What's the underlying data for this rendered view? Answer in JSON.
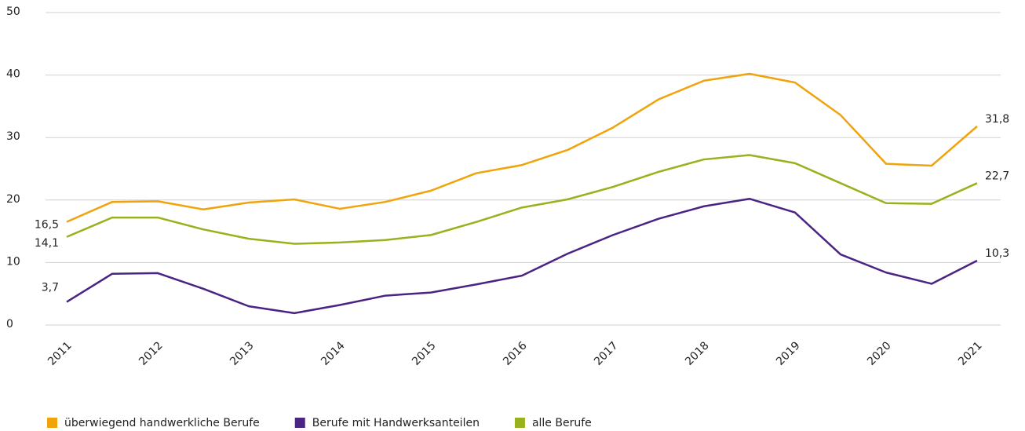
{
  "chart_data": {
    "type": "line",
    "categories": [
      "2011",
      null,
      "2012",
      null,
      "2013",
      null,
      "2014",
      null,
      "2015",
      null,
      "2016",
      null,
      "2017",
      null,
      "2018",
      null,
      "2019",
      null,
      "2020",
      null,
      "2021"
    ],
    "ylim": [
      0,
      50
    ],
    "yticks": [
      0,
      10,
      20,
      30,
      40,
      50
    ],
    "grid": true,
    "legend": "bottom",
    "series": [
      {
        "name": "überwiegend handwerkliche Berufe",
        "color": "#f0a30a",
        "values": [
          16.5,
          19.7,
          19.8,
          18.5,
          19.6,
          20.1,
          18.6,
          19.7,
          21.5,
          24.3,
          25.6,
          28.0,
          31.6,
          36.1,
          39.1,
          40.2,
          38.8,
          33.6,
          25.8,
          25.5,
          31.8
        ],
        "value_labels": [
          "16,5",
          null,
          null,
          null,
          null,
          null,
          null,
          null,
          null,
          null,
          null,
          null,
          null,
          null,
          null,
          null,
          null,
          null,
          null,
          null,
          "31,8"
        ]
      },
      {
        "name": "Berufe mit Handwerksanteilen",
        "color": "#4a2483",
        "values": [
          3.7,
          8.2,
          8.3,
          5.8,
          3.0,
          1.9,
          3.2,
          4.7,
          5.2,
          6.5,
          7.9,
          11.4,
          14.4,
          17.0,
          19.0,
          20.2,
          18.0,
          11.3,
          8.4,
          6.6,
          10.3
        ],
        "value_labels": [
          "3,7",
          null,
          null,
          null,
          null,
          null,
          null,
          null,
          null,
          null,
          null,
          null,
          null,
          null,
          null,
          null,
          null,
          null,
          null,
          null,
          "10,3"
        ]
      },
      {
        "name": "alle Berufe",
        "color": "#97b21c",
        "values": [
          14.1,
          17.2,
          17.2,
          15.3,
          13.8,
          13.0,
          13.2,
          13.6,
          14.4,
          16.5,
          18.8,
          20.1,
          22.1,
          24.5,
          26.5,
          27.2,
          25.9,
          22.7,
          19.5,
          19.4,
          22.7
        ],
        "value_labels": [
          "14,1",
          null,
          null,
          null,
          null,
          null,
          null,
          null,
          null,
          null,
          null,
          null,
          null,
          null,
          null,
          null,
          null,
          null,
          null,
          null,
          "22,7"
        ]
      }
    ]
  }
}
